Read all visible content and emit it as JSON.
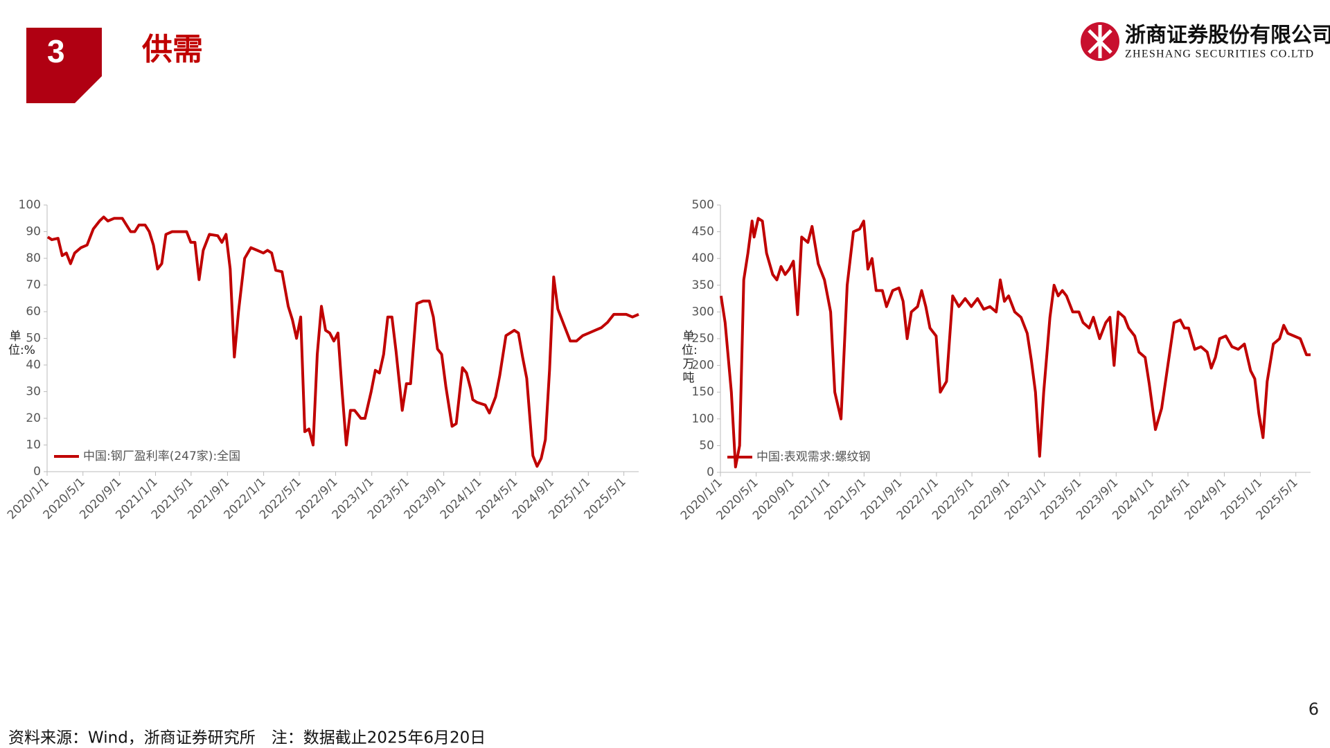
{
  "header": {
    "number": "3",
    "title": "供需"
  },
  "logo": {
    "name_cn": "浙商证券股份有限公司",
    "name_en": "ZHESHANG SECURITIES CO.LTD"
  },
  "footer": {
    "source": "资料来源：Wind，浙商证券研究所　注：数据截止2025年6月20日",
    "page": "6"
  },
  "chart_data": [
    {
      "type": "line",
      "y_label": "单位:%",
      "legend": "lower left",
      "xlim": [
        "2020/1/1",
        "2025/6/20"
      ],
      "xticks": [
        "2020/1/1",
        "2020/5/1",
        "2020/9/1",
        "2021/1/1",
        "2021/5/1",
        "2021/9/1",
        "2022/1/1",
        "2022/5/1",
        "2022/9/1",
        "2023/1/1",
        "2023/5/1",
        "2023/9/1",
        "2024/1/1",
        "2024/5/1",
        "2024/9/1",
        "2025/1/1",
        "2025/5/1"
      ],
      "ylim": [
        0,
        100
      ],
      "yticks": [
        0,
        10,
        20,
        30,
        40,
        50,
        60,
        70,
        80,
        90,
        100
      ],
      "x": [
        "2020/1/3",
        "2020/1/17",
        "2020/2/7",
        "2020/2/21",
        "2020/3/6",
        "2020/3/20",
        "2020/4/3",
        "2020/4/24",
        "2020/5/15",
        "2020/6/5",
        "2020/6/26",
        "2020/7/10",
        "2020/7/24",
        "2020/8/14",
        "2020/9/11",
        "2020/10/9",
        "2020/10/23",
        "2020/11/6",
        "2020/11/27",
        "2020/12/11",
        "2020/12/25",
        "2021/1/8",
        "2021/1/22",
        "2021/2/5",
        "2021/2/26",
        "2021/3/19",
        "2021/4/16",
        "2021/4/30",
        "2021/5/14",
        "2021/5/28",
        "2021/6/11",
        "2021/7/2",
        "2021/7/30",
        "2021/8/13",
        "2021/8/27",
        "2021/9/10",
        "2021/9/24",
        "2021/10/8",
        "2021/10/29",
        "2021/11/19",
        "2021/12/10",
        "2021/12/31",
        "2022/1/14",
        "2022/1/28",
        "2022/2/11",
        "2022/3/4",
        "2022/3/25",
        "2022/4/8",
        "2022/4/22",
        "2022/5/6",
        "2022/5/20",
        "2022/6/3",
        "2022/6/17",
        "2022/7/1",
        "2022/7/15",
        "2022/7/29",
        "2022/8/12",
        "2022/8/26",
        "2022/9/9",
        "2022/9/23",
        "2022/10/7",
        "2022/10/21",
        "2022/11/4",
        "2022/11/25",
        "2022/12/9",
        "2022/12/30",
        "2023/1/13",
        "2023/1/27",
        "2023/2/10",
        "2023/2/24",
        "2023/3/10",
        "2023/3/24",
        "2023/4/14",
        "2023/4/28",
        "2023/5/12",
        "2023/6/2",
        "2023/6/23",
        "2023/7/14",
        "2023/7/28",
        "2023/8/11",
        "2023/8/25",
        "2023/9/8",
        "2023/9/29",
        "2023/10/13",
        "2023/11/3",
        "2023/11/17",
        "2023/12/1",
        "2023/12/8",
        "2023/12/22",
        "2024/1/19",
        "2024/2/2",
        "2024/2/23",
        "2024/3/8",
        "2024/3/29",
        "2024/4/12",
        "2024/4/26",
        "2024/5/10",
        "2024/5/24",
        "2024/6/7",
        "2024/6/28",
        "2024/7/12",
        "2024/7/26",
        "2024/8/9",
        "2024/8/23",
        "2024/9/6",
        "2024/9/20",
        "2024/10/11",
        "2024/11/1",
        "2024/11/22",
        "2024/12/13",
        "2025/1/3",
        "2025/1/24",
        "2025/2/14",
        "2025/3/7",
        "2025/3/28",
        "2025/4/18",
        "2025/5/9",
        "2025/5/30",
        "2025/6/20"
      ],
      "series": [
        {
          "name": "中国:钢厂盈利率(247家):全国",
          "color": "#c00000",
          "values": [
            88,
            87,
            87.5,
            81,
            82,
            78,
            82,
            84,
            85,
            91,
            94,
            95.5,
            94,
            95,
            95,
            90,
            90,
            92.5,
            92.5,
            90,
            85,
            76,
            78,
            89,
            90,
            90,
            90,
            86,
            86,
            72,
            83,
            89,
            88.5,
            86,
            89,
            76,
            43,
            60,
            80,
            84,
            83,
            82,
            83,
            82,
            75.5,
            75,
            62,
            57,
            50,
            58,
            15,
            16,
            10,
            44,
            62,
            53,
            52,
            49,
            52,
            30,
            10,
            23,
            23,
            20,
            20,
            30,
            38,
            37,
            44,
            58,
            58,
            45,
            23,
            33,
            33,
            63,
            64,
            64,
            58,
            46,
            44,
            32,
            17,
            18,
            39,
            37,
            31,
            27,
            26,
            25,
            22,
            28,
            36,
            51,
            52,
            53,
            52,
            43,
            35,
            6,
            2,
            5,
            12,
            38,
            73,
            61,
            55,
            49,
            49,
            51,
            52,
            53,
            54,
            56,
            59,
            59,
            59,
            58,
            59
          ]
        }
      ]
    },
    {
      "type": "line",
      "y_label": "单位:万吨",
      "legend": "lower left",
      "xlim": [
        "2020/1/1",
        "2025/6/20"
      ],
      "xticks": [
        "2020/1/1",
        "2020/5/1",
        "2020/9/1",
        "2021/1/1",
        "2021/5/1",
        "2021/9/1",
        "2022/1/1",
        "2022/5/1",
        "2022/9/1",
        "2023/1/1",
        "2023/5/1",
        "2023/9/1",
        "2024/1/1",
        "2024/5/1",
        "2024/9/1",
        "2025/1/1",
        "2025/5/1"
      ],
      "ylim": [
        0,
        500
      ],
      "yticks": [
        0,
        50,
        100,
        150,
        200,
        250,
        300,
        350,
        400,
        450,
        500
      ],
      "x": [
        "2020/1/3",
        "2020/1/17",
        "2020/2/7",
        "2020/2/21",
        "2020/3/6",
        "2020/3/20",
        "2020/4/3",
        "2020/4/17",
        "2020/4/24",
        "2020/5/8",
        "2020/5/22",
        "2020/6/5",
        "2020/6/26",
        "2020/7/10",
        "2020/7/24",
        "2020/8/7",
        "2020/8/21",
        "2020/9/4",
        "2020/9/18",
        "2020/10/2",
        "2020/10/23",
        "2020/11/6",
        "2020/11/27",
        "2020/12/18",
        "2021/1/8",
        "2021/1/22",
        "2021/2/12",
        "2021/3/5",
        "2021/3/26",
        "2021/4/16",
        "2021/4/30",
        "2021/5/14",
        "2021/5/28",
        "2021/6/11",
        "2021/7/2",
        "2021/7/16",
        "2021/8/6",
        "2021/8/27",
        "2021/9/10",
        "2021/9/24",
        "2021/10/8",
        "2021/10/29",
        "2021/11/12",
        "2021/11/26",
        "2021/12/10",
        "2021/12/31",
        "2022/1/14",
        "2022/2/4",
        "2022/2/25",
        "2022/3/18",
        "2022/4/8",
        "2022/4/29",
        "2022/5/20",
        "2022/6/10",
        "2022/7/1",
        "2022/7/22",
        "2022/8/5",
        "2022/8/19",
        "2022/9/2",
        "2022/9/23",
        "2022/10/14",
        "2022/11/4",
        "2022/11/18",
        "2022/12/2",
        "2022/12/16",
        "2022/12/30",
        "2023/1/20",
        "2023/2/3",
        "2023/2/17",
        "2023/3/3",
        "2023/3/17",
        "2023/4/7",
        "2023/4/28",
        "2023/5/12",
        "2023/6/2",
        "2023/6/16",
        "2023/7/7",
        "2023/7/28",
        "2023/8/11",
        "2023/8/25",
        "2023/9/8",
        "2023/9/29",
        "2023/10/13",
        "2023/11/3",
        "2023/11/17",
        "2023/12/8",
        "2023/12/22",
        "2024/1/12",
        "2024/2/2",
        "2024/2/23",
        "2024/3/15",
        "2024/4/5",
        "2024/4/19",
        "2024/5/3",
        "2024/5/24",
        "2024/6/14",
        "2024/7/5",
        "2024/7/19",
        "2024/8/2",
        "2024/8/16",
        "2024/9/6",
        "2024/9/27",
        "2024/10/18",
        "2024/11/8",
        "2024/11/29",
        "2024/12/13",
        "2024/12/27",
        "2025/1/10",
        "2025/1/24",
        "2025/2/14",
        "2025/3/7",
        "2025/3/21",
        "2025/4/4",
        "2025/4/25",
        "2025/5/16",
        "2025/6/6",
        "2025/6/20"
      ],
      "series": [
        {
          "name": "中国:表观需求:螺纹钢",
          "color": "#c00000",
          "values": [
            330,
            280,
            150,
            10,
            50,
            360,
            410,
            470,
            440,
            475,
            470,
            410,
            370,
            360,
            385,
            370,
            380,
            395,
            295,
            440,
            430,
            460,
            390,
            360,
            300,
            150,
            100,
            350,
            450,
            455,
            470,
            380,
            400,
            340,
            340,
            310,
            340,
            345,
            320,
            250,
            300,
            310,
            340,
            310,
            270,
            255,
            150,
            170,
            330,
            310,
            325,
            310,
            325,
            305,
            310,
            300,
            360,
            320,
            330,
            300,
            290,
            260,
            210,
            150,
            30,
            150,
            290,
            350,
            330,
            340,
            330,
            300,
            300,
            280,
            270,
            290,
            250,
            280,
            290,
            200,
            300,
            290,
            270,
            255,
            225,
            215,
            165,
            80,
            120,
            200,
            280,
            285,
            270,
            270,
            230,
            235,
            225,
            195,
            215,
            250,
            255,
            235,
            230,
            240,
            190,
            175,
            110,
            65,
            170,
            240,
            250,
            275,
            260,
            255,
            250,
            220,
            220
          ]
        }
      ]
    }
  ]
}
